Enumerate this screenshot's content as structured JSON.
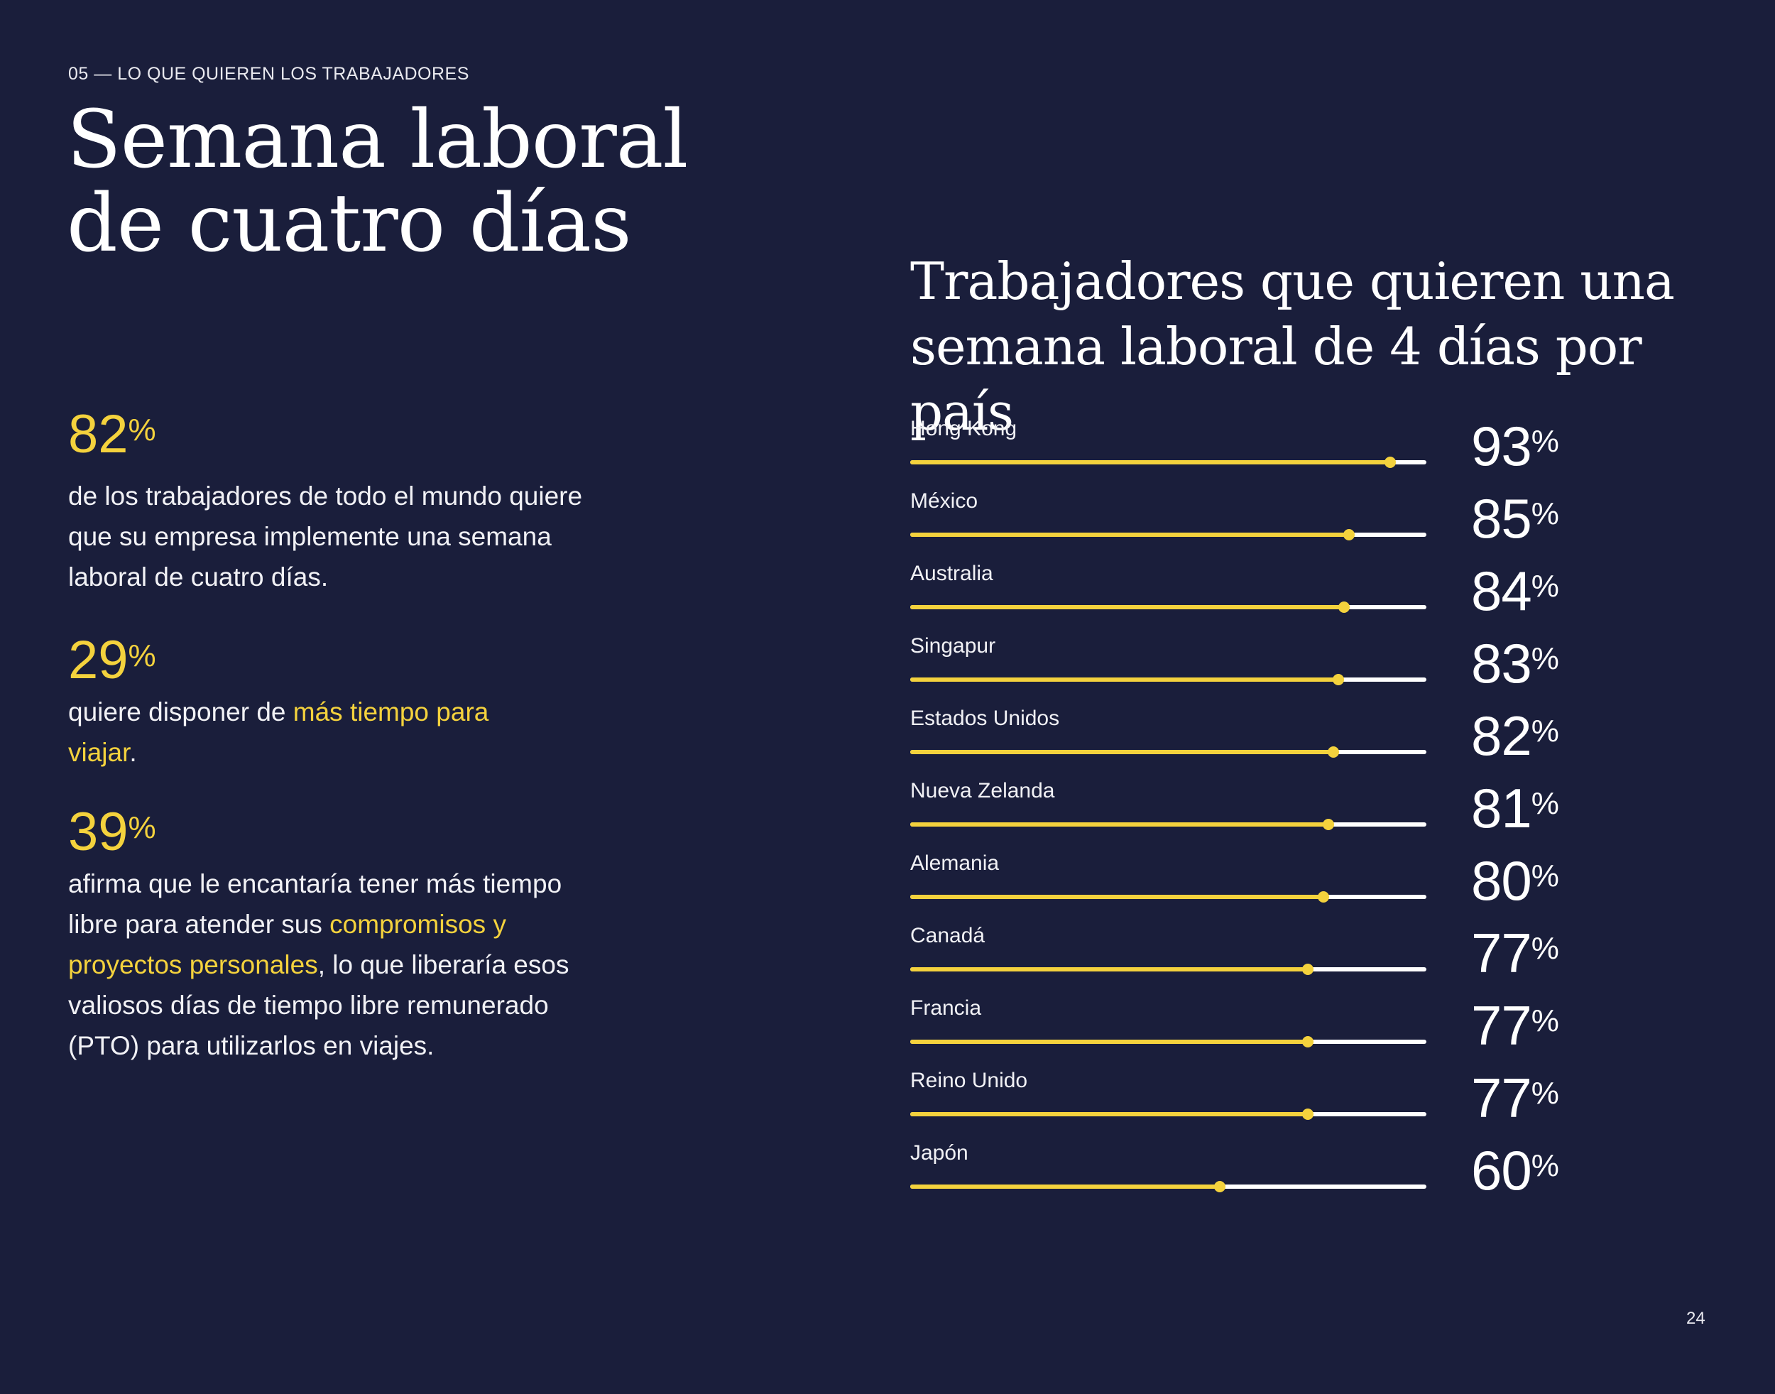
{
  "section_label": "05 — LO QUE QUIEREN LOS TRABAJADORES",
  "page_title": "Semana laboral de cuatro días",
  "percent_sign": "%",
  "stats": [
    {
      "value": "82",
      "text": [
        {
          "t": "de los trabajadores de todo el mundo quiere que su empresa implemente una semana laboral de cuatro días.",
          "hl": false
        }
      ]
    },
    {
      "value": "29",
      "text": [
        {
          "t": "quiere disponer de ",
          "hl": false
        },
        {
          "t": "más tiempo para viajar",
          "hl": true
        },
        {
          "t": ".",
          "hl": false
        }
      ]
    },
    {
      "value": "39",
      "text": [
        {
          "t": "afirma que le encantaría tener más tiempo libre para atender sus ",
          "hl": false
        },
        {
          "t": "compromisos y proyectos personales",
          "hl": true
        },
        {
          "t": ", lo que liberaría esos valiosos días de tiempo libre remunerado (PTO) para utilizarlos en viajes.",
          "hl": false
        }
      ]
    }
  ],
  "colors": {
    "background": "#1a1e3b",
    "accent": "#f4d23d",
    "track": "#ffffff"
  },
  "chart_data": {
    "type": "bar",
    "title": "Trabajadores que quieren una semana laboral de 4 días por país",
    "xlabel": "",
    "ylabel": "",
    "value_unit": "%",
    "ylim": [
      0,
      100
    ],
    "categories": [
      "Hong Kong",
      "México",
      "Australia",
      "Singapur",
      "Estados Unidos",
      "Nueva Zelanda",
      "Alemania",
      "Canadá",
      "Francia",
      "Reino Unido",
      "Japón"
    ],
    "values": [
      93,
      85,
      84,
      83,
      82,
      81,
      80,
      77,
      77,
      77,
      60
    ]
  },
  "page_number": "24"
}
